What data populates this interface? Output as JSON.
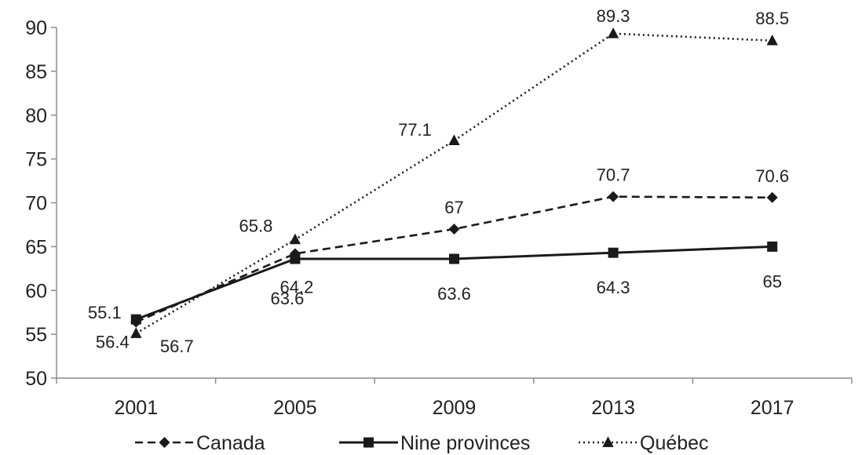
{
  "chart_data": {
    "type": "line",
    "title": "",
    "xlabel": "",
    "ylabel": "",
    "categories": [
      "2001",
      "2005",
      "2009",
      "2013",
      "2017"
    ],
    "ylim": [
      50,
      90
    ],
    "yticks": [
      50,
      55,
      60,
      65,
      70,
      75,
      80,
      85,
      90
    ],
    "grid": false,
    "legend": "bottom",
    "series": [
      {
        "name": "Canada",
        "values": [
          56.4,
          64.2,
          67,
          70.7,
          70.6
        ],
        "labels": [
          "56.4",
          "64.2",
          "67",
          "70.7",
          "70.6"
        ],
        "line_style": "dashed",
        "marker": "diamond",
        "color": "#1a1a1a"
      },
      {
        "name": "Nine provinces",
        "values": [
          56.7,
          63.6,
          63.6,
          64.3,
          65
        ],
        "labels": [
          "56.7",
          "63.6",
          "63.6",
          "64.3",
          "65"
        ],
        "line_style": "solid",
        "marker": "square",
        "color": "#1a1a1a"
      },
      {
        "name": "Québec",
        "values": [
          55.1,
          65.8,
          77.1,
          89.3,
          88.5
        ],
        "labels": [
          "55.1",
          "65.8",
          "77.1",
          "89.3",
          "88.5"
        ],
        "line_style": "dotted",
        "marker": "triangle",
        "color": "#1a1a1a"
      }
    ]
  }
}
